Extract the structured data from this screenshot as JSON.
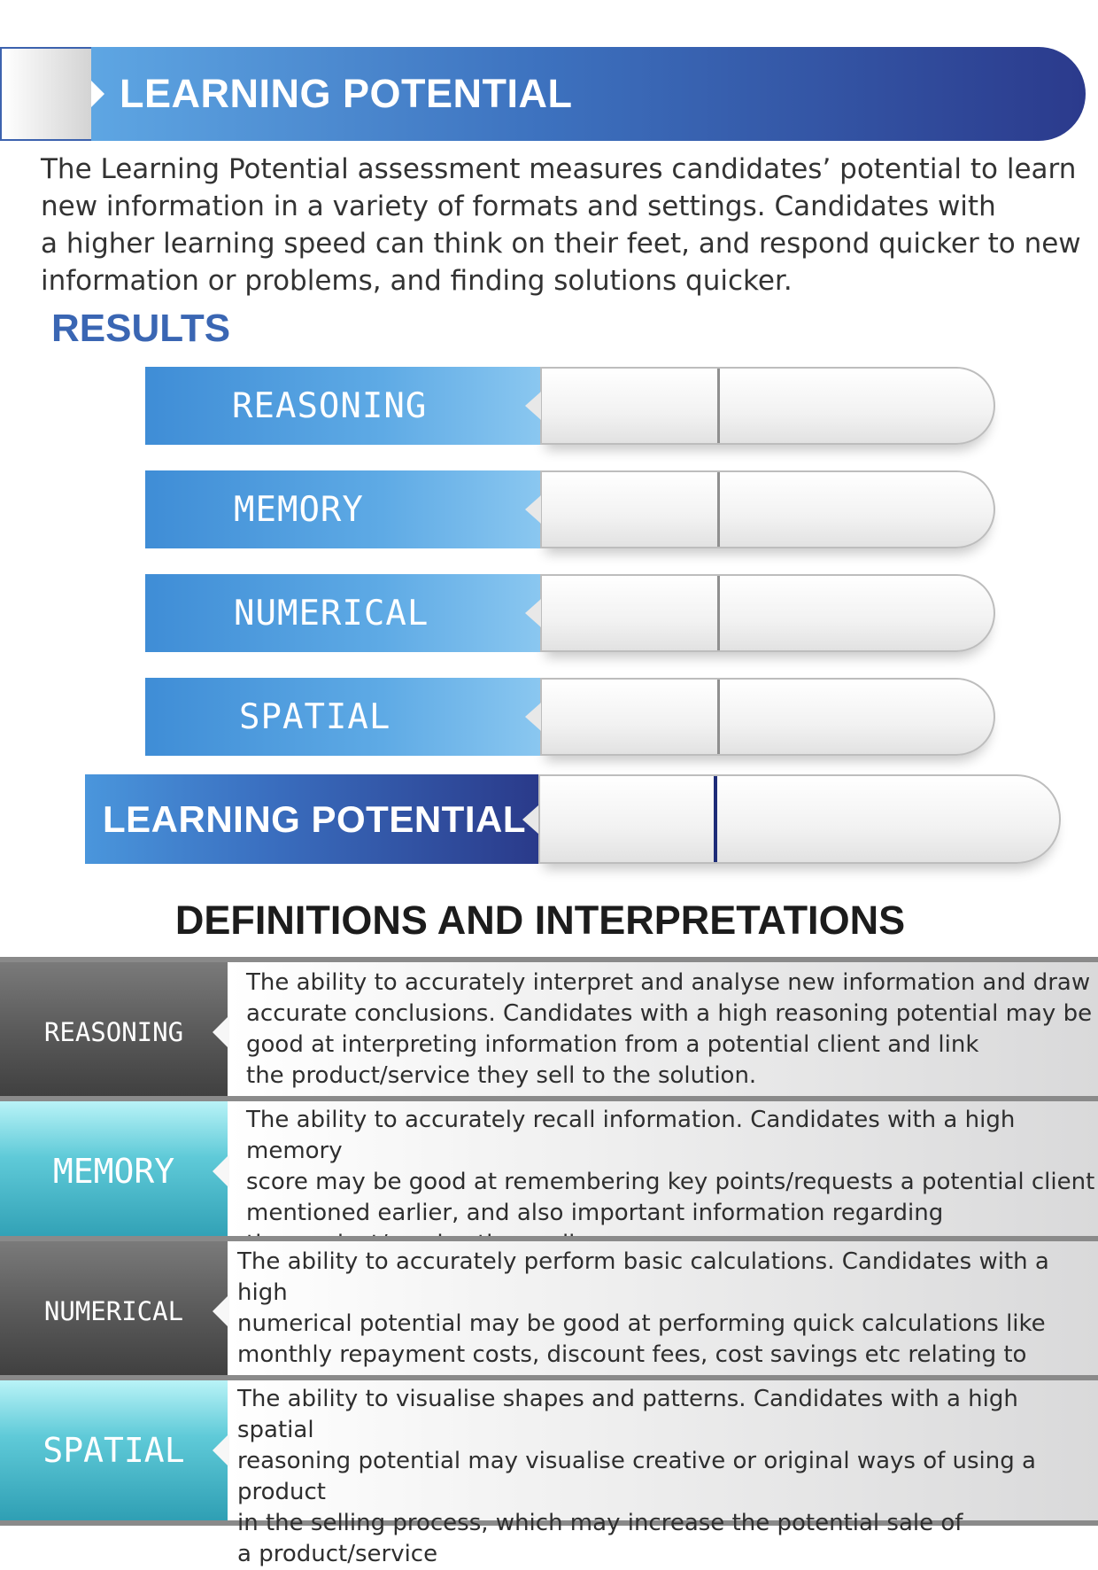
{
  "header": {
    "title": "LEARNING POTENTIAL"
  },
  "intro": {
    "text": "The Learning Potential assessment measures candidates’ potential to learn\nnew information in a variety of formats and settings. Candidates with\na higher learning speed can think on their feet, and respond quicker to new\ninformation or problems, and finding solutions quicker."
  },
  "results": {
    "title": "RESULTS",
    "bars": [
      {
        "label": "REASONING"
      },
      {
        "label": "MEMORY"
      },
      {
        "label": "NUMERICAL"
      },
      {
        "label": "SPATIAL"
      }
    ],
    "overall": {
      "label": "LEARNING POTENTIAL"
    }
  },
  "definitions": {
    "title": "DEFINITIONS AND INTERPRETATIONS",
    "rows": [
      {
        "label": "REASONING",
        "text": "The ability to accurately interpret and analyse new information and draw\naccurate conclusions. Candidates with a high reasoning potential may be\ngood at interpreting information from a potential client and link\nthe product/service they sell to the solution."
      },
      {
        "label": "MEMORY",
        "text": "The ability to accurately recall information. Candidates with a high memory\nscore may be good at remembering key points/requests a potential client\nmentioned earlier, and also important information regarding\n the product/service they sell."
      },
      {
        "label": "NUMERICAL",
        "text": "The ability to accurately perform basic calculations. Candidates with a high\nnumerical potential may be good at performing quick calculations like\nmonthly repayment costs, discount fees, cost savings etc relating to\nthe product/service they sell."
      },
      {
        "label": "SPATIAL",
        "text": "The ability to visualise shapes and patterns. Candidates with a high spatial\nreasoning potential may visualise creative or original ways of using a product\nin the selling process, which may increase the potential sale of\na product/service"
      }
    ]
  },
  "colors": {
    "header_blue_dark": "#2b3a8c",
    "header_blue_light": "#5ea6e3",
    "results_title": "#3a66b3",
    "row_dark": "#5a5a5a",
    "row_cyan": "#5fcad8"
  }
}
